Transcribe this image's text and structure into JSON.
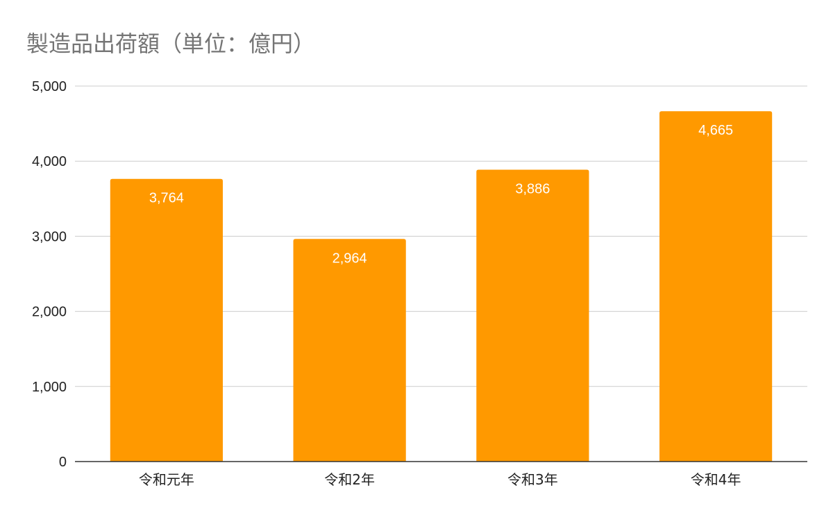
{
  "chart_data": {
    "type": "bar",
    "title": "製造品出荷額（単位：億円）",
    "categories": [
      "令和元年",
      "令和2年",
      "令和3年",
      "令和4年"
    ],
    "values": [
      3764,
      2964,
      3886,
      4665
    ],
    "data_labels": [
      "3,764",
      "2,964",
      "3,886",
      "4,665"
    ],
    "y_ticks": [
      0,
      1000,
      2000,
      3000,
      4000,
      5000
    ],
    "y_tick_labels": [
      "0",
      "1,000",
      "2,000",
      "3,000",
      "4,000",
      "5,000"
    ],
    "ylim": [
      0,
      5000
    ],
    "grid": true,
    "legend": "none",
    "bar_color": "#ff9900",
    "grid_color": "#cccccc",
    "axis_color": "#333333"
  }
}
